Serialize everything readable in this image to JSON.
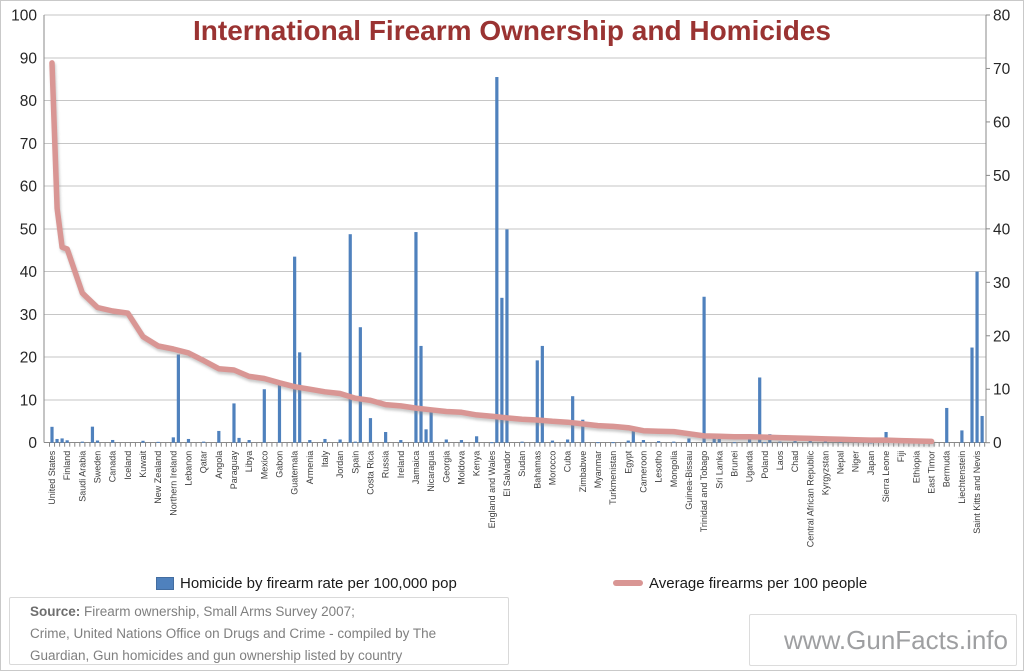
{
  "title": "International Firearm Ownership and Homicides",
  "watermark": "www.GunFacts.info",
  "source": {
    "label": "Source:",
    "line1": "Firearm ownership, Small Arms Survey 2007;",
    "line2": "Crime, United Nations Office on Drugs and Crime - compiled by The",
    "line3": "Guardian, Gun homicides and gun ownership listed by country"
  },
  "legend": [
    {
      "label": "Homicide by firearm rate per 100,000 pop",
      "type": "bar",
      "color": "#4f81bd"
    },
    {
      "label": "Average firearms per 100 people",
      "type": "line",
      "color": "#d99694"
    }
  ],
  "colors": {
    "bar": "#4f81bd",
    "line": "#d99694",
    "title": "#9a3332",
    "gridline": "#c6c6c6",
    "axis": "#898989",
    "axis_text": "#262626",
    "category_text": "#3d3d3d"
  },
  "chart_data": {
    "type": "bar",
    "note": "dual-axis combo: blue bars = homicide by firearm rate per 100,000 pop (right axis); salmon line = average firearms per 100 people (left axis); only every 3rd country is labeled on the category axis",
    "title": "International Firearm Ownership and Homicides",
    "xlabel": "",
    "ylabel_left": "Average firearms per 100 people",
    "ylabel_right": "Homicide by firearm rate per 100,000 pop",
    "left_axis": {
      "min": 0,
      "max": 100,
      "step": 10
    },
    "right_axis": {
      "min": 0,
      "max": 80,
      "step": 10
    },
    "label_interval": 3,
    "categories": [
      "United States",
      "Finland",
      "Saudi Arabia",
      "Sweden",
      "Canada",
      "Iceland",
      "Kuwait",
      "New Zealand",
      "Northern Ireland",
      "Lebanon",
      "Qatar",
      "Angola",
      "Paraguay",
      "Libya",
      "Mexico",
      "Gabon",
      "Guatemala",
      "Armenia",
      "Italy",
      "Jordan",
      "Spain",
      "Costa Rica",
      "Russia",
      "Ireland",
      "Jamaica",
      "Nicaragua",
      "Georgia",
      "Moldova",
      "Kenya",
      "England and Wales",
      "El Salvador",
      "Sudan",
      "Bahamas",
      "Morocco",
      "Cuba",
      "Zimbabwe",
      "Myanmar",
      "Turkmenistan",
      "Egypt",
      "Cameroon",
      "Lesotho",
      "Mongolia",
      "Guinea-Bissau",
      "Trinidad and Tobago",
      "Sri Lanka",
      "Brunei",
      "Uganda",
      "Poland",
      "Laos",
      "Chad",
      "Central African Republic",
      "Kyrgyzstan",
      "Nepal",
      "Niger",
      "Japan",
      "Sierra Leone",
      "Fiji",
      "Ethiopia",
      "East Timor",
      "Bermuda",
      "Liechtenstein",
      "Saint Kitts and Nevis"
    ],
    "series": [
      {
        "name": "Homicide by firearm rate per 100,000 pop",
        "type": "bar",
        "axis": "right",
        "values": [
          2.97,
          0.45,
          0.2,
          0.41,
          0.51,
          0,
          0.36,
          0.16,
          1.0,
          0.7,
          0.2,
          2.2,
          7.35,
          0.5,
          10.0,
          11.2,
          34.8,
          0.5,
          0.7,
          0.6,
          0.2,
          4.6,
          2.0,
          0.5,
          39.4,
          5.9,
          0.6,
          0.5,
          1.2,
          0.1,
          39.9,
          0.2,
          15.4,
          0.4,
          0.6,
          4.3,
          0.1,
          0.1,
          0.4,
          0.5,
          0.3,
          0.2,
          0.8,
          27.3,
          1.0,
          0.1,
          1.2,
          0.1,
          0.2,
          0.3,
          0.5,
          0.5,
          0.3,
          0.2,
          0.05,
          2.0,
          0.2,
          0.3,
          0.3,
          6.5,
          2.3,
          32.0
        ]
      },
      {
        "name": "Average firearms per 100 people",
        "type": "line",
        "axis": "left",
        "values": [
          88.8,
          45.3,
          35.0,
          31.6,
          30.8,
          30.3,
          24.8,
          22.6,
          21.9,
          21.0,
          19.2,
          17.3,
          17.0,
          15.5,
          15.0,
          14.0,
          13.1,
          12.5,
          11.9,
          11.5,
          10.4,
          9.9,
          8.9,
          8.6,
          8.1,
          7.7,
          7.3,
          7.1,
          6.5,
          6.2,
          5.8,
          5.5,
          5.3,
          5.0,
          4.8,
          4.4,
          4.0,
          3.8,
          3.5,
          2.8,
          2.7,
          2.6,
          2.1,
          1.6,
          1.5,
          1.4,
          1.4,
          1.3,
          1.2,
          1.1,
          1.0,
          0.9,
          0.8,
          0.7,
          0.6,
          0.6,
          0.5,
          0.4,
          0.3,
          null,
          null,
          null
        ]
      }
    ],
    "unlabeled_bars": [
      {
        "after": 0,
        "offset": 1,
        "value": 0.7
      },
      {
        "after": 0,
        "offset": 2,
        "value": 0.8
      },
      {
        "after": 2,
        "offset": 2,
        "value": 3.0
      },
      {
        "after": 8,
        "offset": 1,
        "value": 16.5
      },
      {
        "after": 12,
        "offset": 1,
        "value": 0.9
      },
      {
        "after": 16,
        "offset": 1,
        "value": 16.9
      },
      {
        "after": 19,
        "offset": 2,
        "value": 39.0
      },
      {
        "after": 20,
        "offset": 1,
        "value": 21.6
      },
      {
        "after": 24,
        "offset": 1,
        "value": 18.1
      },
      {
        "after": 24,
        "offset": 2,
        "value": 2.5
      },
      {
        "after": 29,
        "offset": 1,
        "value": 68.4
      },
      {
        "after": 29,
        "offset": 2,
        "value": 27.1
      },
      {
        "after": 32,
        "offset": 1,
        "value": 18.1
      },
      {
        "after": 34,
        "offset": 1,
        "value": 8.7
      },
      {
        "after": 38,
        "offset": 1,
        "value": 2.6
      },
      {
        "after": 43,
        "offset": 2,
        "value": 1.0
      },
      {
        "after": 46,
        "offset": 2,
        "value": 12.2
      },
      {
        "after": 47,
        "offset": 1,
        "value": 1.6
      },
      {
        "after": 53,
        "offset": 2,
        "value": 0.6
      },
      {
        "after": 60,
        "offset": 2,
        "value": 17.8
      },
      {
        "after": 61,
        "offset": 1,
        "value": 5.0
      }
    ],
    "extra_line_points": [
      {
        "after": 0,
        "offset": 1,
        "value": 54.8
      },
      {
        "after": 0,
        "offset": 2,
        "value": 45.7
      }
    ]
  }
}
